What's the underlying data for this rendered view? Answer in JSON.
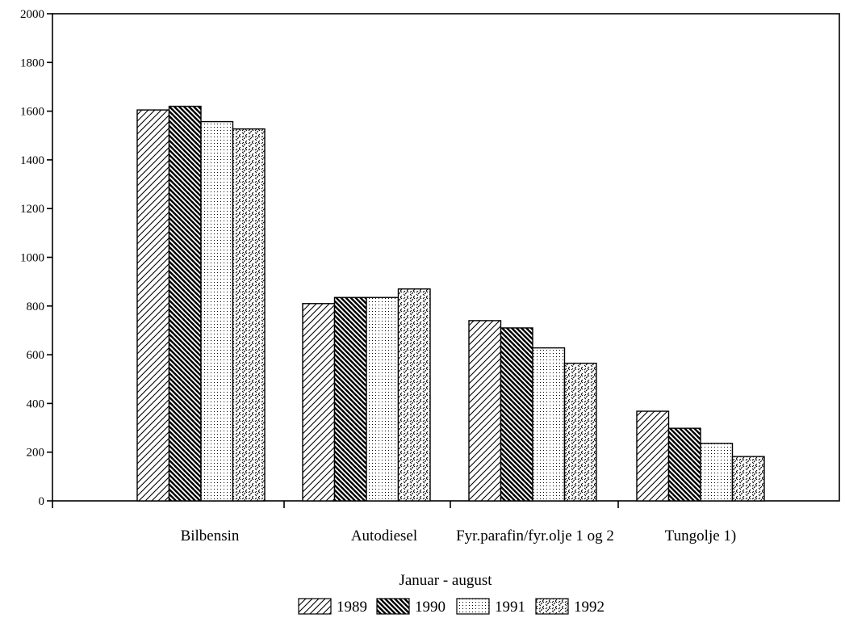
{
  "chart_data": {
    "type": "bar",
    "categories": [
      "Bilbensin",
      "Autodiesel",
      "Fyr.parafin/fyr.olje 1 og 2",
      "Tungolje 1)"
    ],
    "series": [
      {
        "name": "1989",
        "values": [
          1605,
          810,
          740,
          368
        ],
        "pattern": "hatch-forward"
      },
      {
        "name": "1990",
        "values": [
          1620,
          835,
          710,
          298
        ],
        "pattern": "hatch-back-dense"
      },
      {
        "name": "1991",
        "values": [
          1557,
          835,
          628,
          236
        ],
        "pattern": "dots"
      },
      {
        "name": "1992",
        "values": [
          1527,
          870,
          565,
          182
        ],
        "pattern": "crosshatch-zigzag"
      }
    ],
    "xlabel": "Januar - august",
    "ylim": [
      0,
      2000
    ],
    "yticks": [
      0,
      200,
      400,
      600,
      800,
      1000,
      1200,
      1400,
      1600,
      1800,
      2000
    ],
    "grid": false,
    "legend_position": "bottom"
  }
}
